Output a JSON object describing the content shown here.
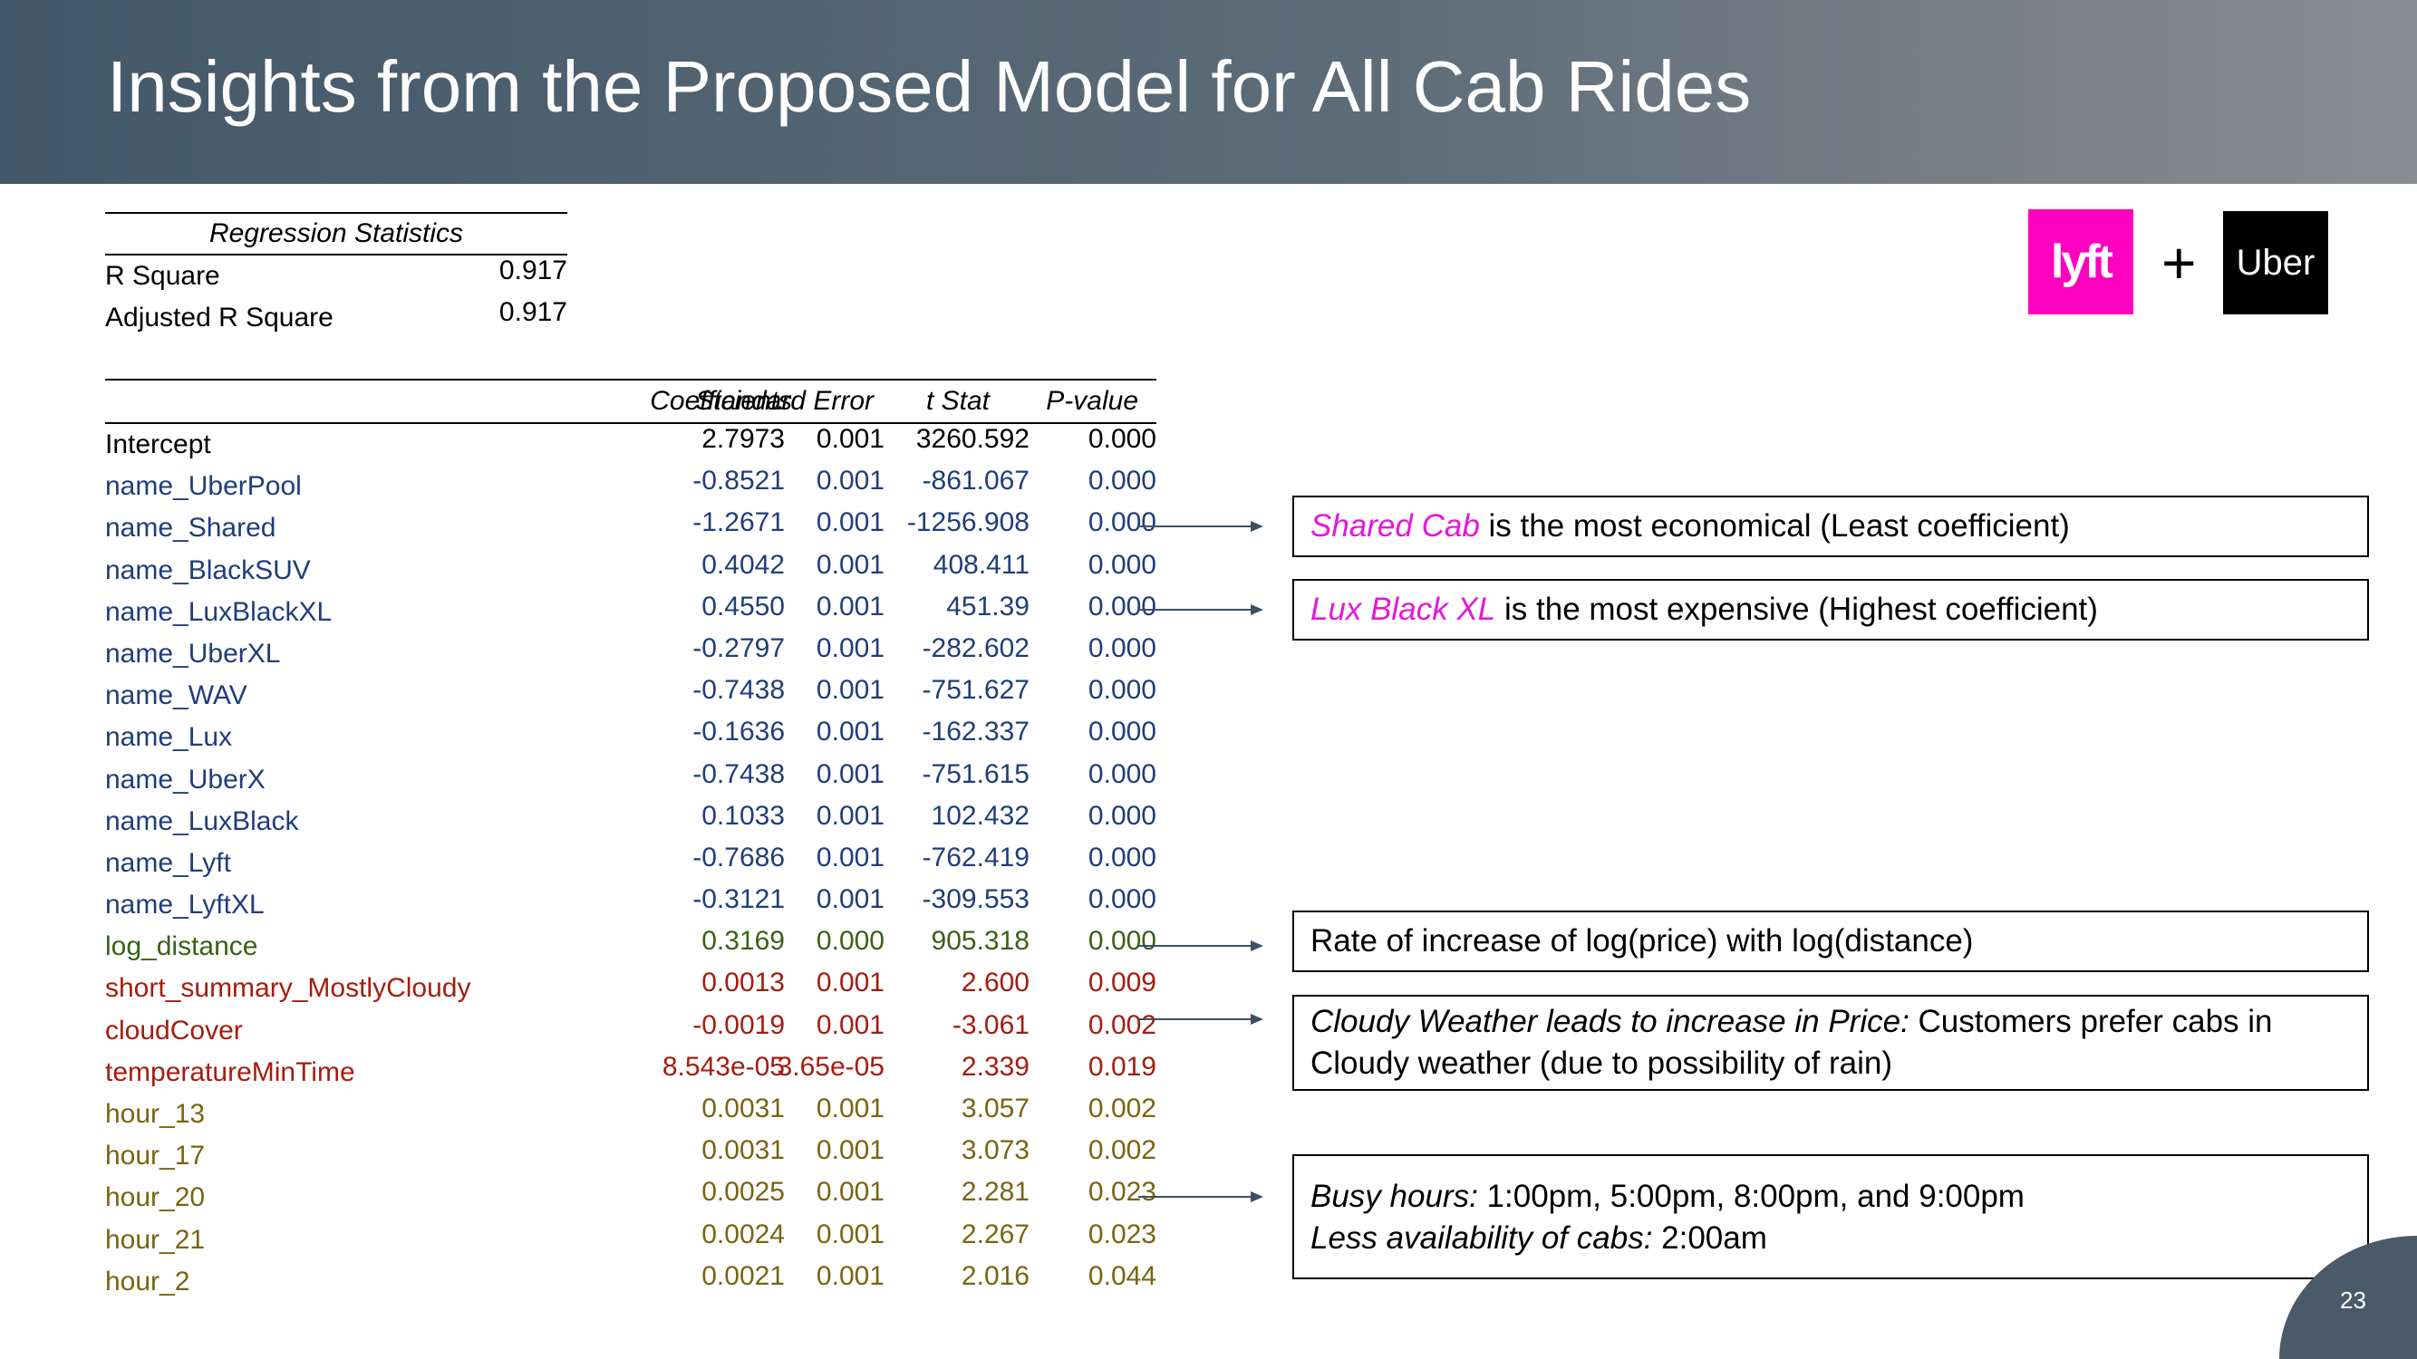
{
  "title": "Insights from the Proposed Model for All Cab Rides",
  "regression_stats": {
    "header": "Regression Statistics",
    "rows": [
      {
        "label": "R Square",
        "value": "0.917"
      },
      {
        "label": "Adjusted R Square",
        "value": "0.917"
      }
    ]
  },
  "table": {
    "headers": [
      "Coefficients",
      "Standard Error",
      "t Stat",
      "P-value"
    ],
    "rows": [
      {
        "name": "Intercept",
        "coef": "2.7973",
        "se": "0.001",
        "t": "3260.592",
        "p": "0.000",
        "color": "#000000"
      },
      {
        "name": "name_UberPool",
        "coef": "-0.8521",
        "se": "0.001",
        "t": "-861.067",
        "p": "0.000",
        "color": "#1f3e79"
      },
      {
        "name": "name_Shared",
        "coef": "-1.2671",
        "se": "0.001",
        "t": "-1256.908",
        "p": "0.000",
        "color": "#1f3e79"
      },
      {
        "name": "name_BlackSUV",
        "coef": "0.4042",
        "se": "0.001",
        "t": "408.411",
        "p": "0.000",
        "color": "#1f3e79"
      },
      {
        "name": "name_LuxBlackXL",
        "coef": "0.4550",
        "se": "0.001",
        "t": "451.39",
        "p": "0.000",
        "color": "#1f3e79"
      },
      {
        "name": "name_UberXL",
        "coef": "-0.2797",
        "se": "0.001",
        "t": "-282.602",
        "p": "0.000",
        "color": "#1f3e79"
      },
      {
        "name": "name_WAV",
        "coef": "-0.7438",
        "se": "0.001",
        "t": "-751.627",
        "p": "0.000",
        "color": "#1f3e79"
      },
      {
        "name": "name_Lux",
        "coef": "-0.1636",
        "se": "0.001",
        "t": "-162.337",
        "p": "0.000",
        "color": "#1f3e79"
      },
      {
        "name": "name_UberX",
        "coef": "-0.7438",
        "se": "0.001",
        "t": "-751.615",
        "p": "0.000",
        "color": "#1f3e79"
      },
      {
        "name": "name_LuxBlack",
        "coef": "0.1033",
        "se": "0.001",
        "t": "102.432",
        "p": "0.000",
        "color": "#1f3e79"
      },
      {
        "name": "name_Lyft",
        "coef": "-0.7686",
        "se": "0.001",
        "t": "-762.419",
        "p": "0.000",
        "color": "#1f3e79"
      },
      {
        "name": "name_LyftXL",
        "coef": "-0.3121",
        "se": "0.001",
        "t": "-309.553",
        "p": "0.000",
        "color": "#1f3e79"
      },
      {
        "name": "log_distance",
        "coef": "0.3169",
        "se": "0.000",
        "t": "905.318",
        "p": "0.000",
        "color": "#3a6115"
      },
      {
        "name": "short_summary_MostlyCloudy",
        "coef": "0.0013",
        "se": "0.001",
        "t": "2.600",
        "p": "0.009",
        "color": "#a31d0f"
      },
      {
        "name": "cloudCover",
        "coef": "-0.0019",
        "se": "0.001",
        "t": "-3.061",
        "p": "0.002",
        "color": "#a31d0f"
      },
      {
        "name": "temperatureMinTime",
        "coef": "8.543e-05",
        "se": "3.65e-05",
        "t": "2.339",
        "p": "0.019",
        "color": "#a31d0f"
      },
      {
        "name": "hour_13",
        "coef": "0.0031",
        "se": "0.001",
        "t": "3.057",
        "p": "0.002",
        "color": "#7a6410"
      },
      {
        "name": "hour_17",
        "coef": "0.0031",
        "se": "0.001",
        "t": "3.073",
        "p": "0.002",
        "color": "#7a6410"
      },
      {
        "name": "hour_20",
        "coef": "0.0025",
        "se": "0.001",
        "t": "2.281",
        "p": "0.023",
        "color": "#7a6410"
      },
      {
        "name": "hour_21",
        "coef": "0.0024",
        "se": "0.001",
        "t": "2.267",
        "p": "0.023",
        "color": "#7a6410"
      },
      {
        "name": "hour_2",
        "coef": "0.0021",
        "se": "0.001",
        "t": "2.016",
        "p": "0.044",
        "color": "#7a6410"
      }
    ]
  },
  "insights": {
    "shared": {
      "highlight": "Shared Cab",
      "rest": " is the most economical (Least coefficient)"
    },
    "lux": {
      "highlight": "Lux Black XL",
      "rest": " is the most expensive (Highest coefficient)"
    },
    "distance": {
      "text": "Rate of increase of log(price) with log(distance)"
    },
    "cloudy": {
      "italic": "Cloudy Weather leads to increase in Price:",
      "rest": " Customers prefer cabs in Cloudy weather (due to possibility of rain)"
    },
    "busy": {
      "italic1": "Busy hours:",
      "rest1": " 1:00pm, 5:00pm, 8:00pm, and 9:00pm",
      "italic2": "Less availability of cabs:",
      "rest2": " 2:00am"
    }
  },
  "logos": {
    "lyft": "lyft",
    "plus": "+",
    "uber": "Uber"
  },
  "page_number": "23",
  "colors": {
    "highlight": "#e617d9",
    "header_bg": "#435868"
  }
}
